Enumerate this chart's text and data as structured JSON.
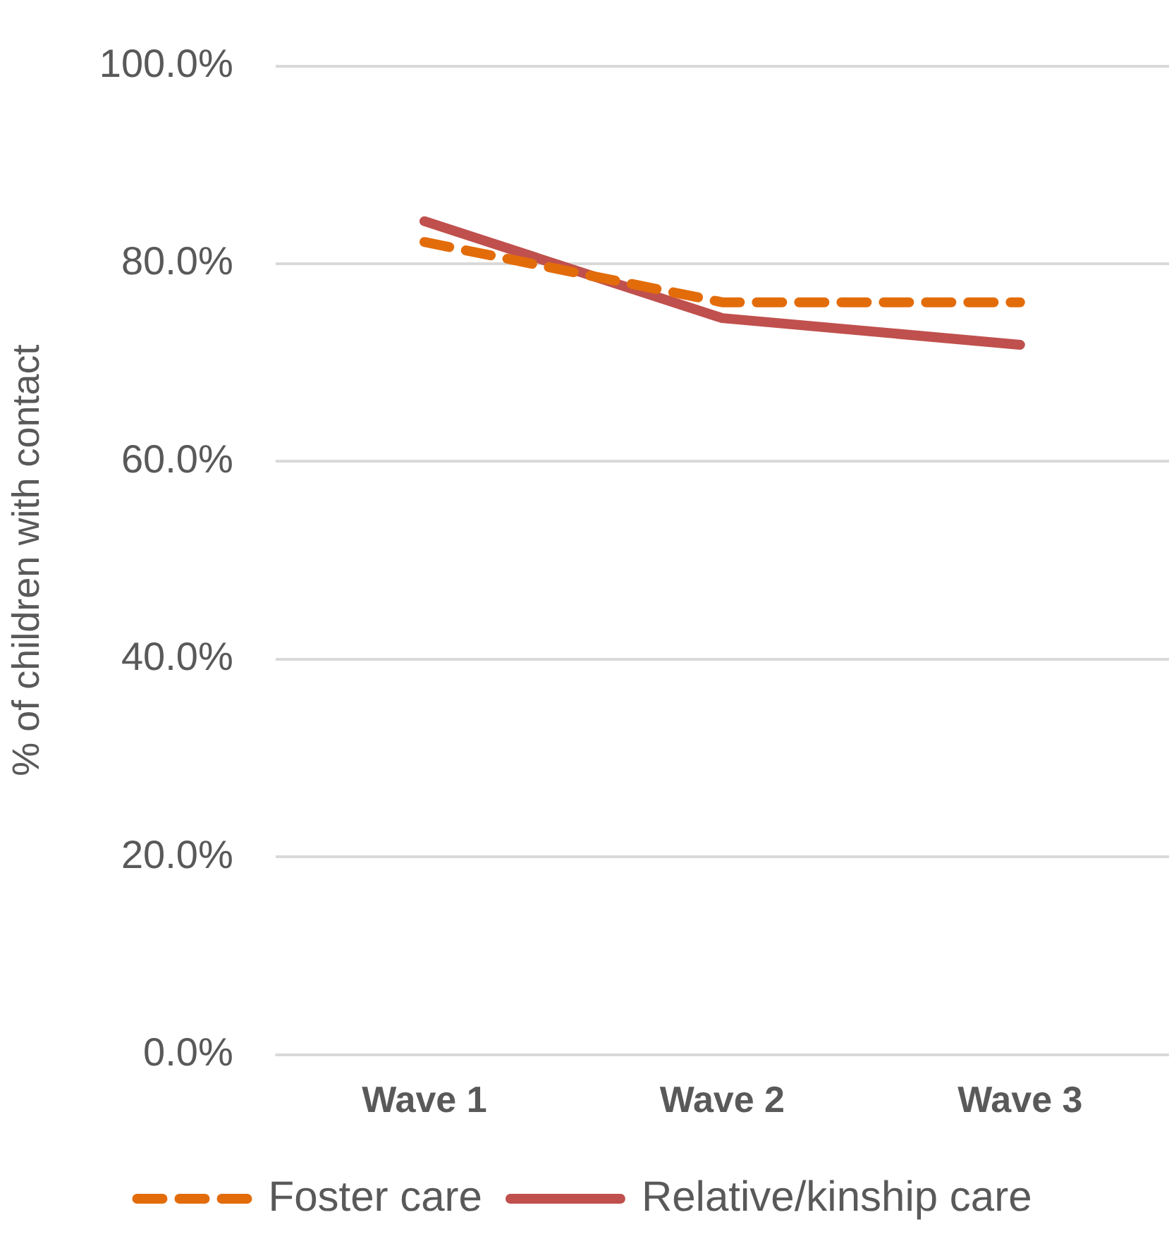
{
  "chart_data": {
    "type": "line",
    "ylabel": "% of children with contact",
    "categories": [
      "Wave 1",
      "Wave 2",
      "Wave 3"
    ],
    "series": [
      {
        "name": "Foster care",
        "color": "#e36c0a",
        "line_style": "dashed",
        "values": [
          82.2,
          76.1,
          76.1
        ]
      },
      {
        "name": "Relative/kinship care",
        "color": "#c0504d",
        "line_style": "solid",
        "values": [
          84.3,
          74.5,
          71.8
        ]
      }
    ],
    "ylim": [
      0,
      100
    ],
    "yticks": [
      {
        "value": 0,
        "label": "0.0%"
      },
      {
        "value": 20,
        "label": "20.0%"
      },
      {
        "value": 40,
        "label": "40.0%"
      },
      {
        "value": 60,
        "label": "60.0%"
      },
      {
        "value": 80,
        "label": "80.0%"
      },
      {
        "value": 100,
        "label": "100.0%"
      }
    ],
    "grid": "y",
    "legend": "bottom",
    "marker": "none"
  }
}
